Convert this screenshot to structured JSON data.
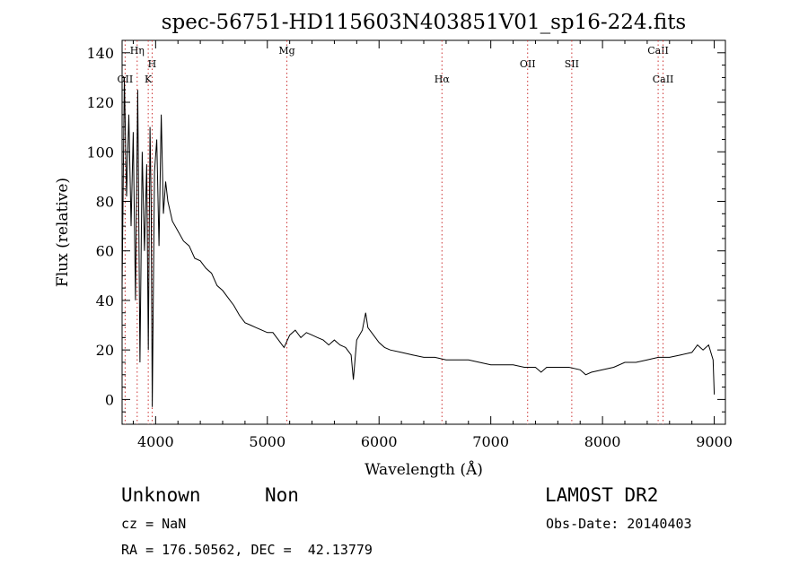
{
  "chart_data": {
    "type": "line",
    "title": "spec-56751-HD115603N403851V01_sp16-224.fits",
    "xlabel": "Wavelength (Å)",
    "ylabel": "Flux (relative)",
    "xlim": [
      3700,
      9100
    ],
    "ylim": [
      -10,
      145
    ],
    "x_ticks": [
      4000,
      5000,
      6000,
      7000,
      8000,
      9000
    ],
    "y_ticks": [
      0,
      20,
      40,
      60,
      80,
      100,
      120,
      140
    ],
    "grid": false,
    "line_color": "#000000",
    "marker_line_style": "dotted",
    "series": [
      {
        "x": [
          3700,
          3720,
          3740,
          3760,
          3780,
          3800,
          3820,
          3840,
          3860,
          3880,
          3900,
          3920,
          3935,
          3950,
          3960,
          3970,
          3990,
          4010,
          4030,
          4050,
          4070,
          4090,
          4110,
          4150,
          4200,
          4250,
          4300,
          4350,
          4400,
          4450,
          4500,
          4550,
          4600,
          4650,
          4700,
          4750,
          4800,
          4850,
          4900,
          4950,
          5000,
          5050,
          5100,
          5150,
          5200,
          5250,
          5300,
          5350,
          5400,
          5450,
          5500,
          5550,
          5600,
          5650,
          5700,
          5750,
          5770,
          5800,
          5850,
          5880,
          5900,
          5950,
          6000,
          6050,
          6100,
          6200,
          6300,
          6400,
          6500,
          6600,
          6700,
          6800,
          6900,
          7000,
          7100,
          7200,
          7300,
          7400,
          7450,
          7500,
          7600,
          7700,
          7800,
          7850,
          7900,
          8000,
          8100,
          8200,
          8300,
          8400,
          8500,
          8600,
          8700,
          8800,
          8850,
          8900,
          8950,
          8990,
          9000
        ],
        "y": [
          45,
          130,
          82,
          115,
          70,
          108,
          40,
          125,
          15,
          100,
          60,
          95,
          20,
          110,
          78,
          -3,
          92,
          105,
          62,
          115,
          75,
          88,
          80,
          72,
          68,
          64,
          62,
          57,
          56,
          53,
          51,
          46,
          44,
          41,
          38,
          34,
          31,
          30,
          29,
          28,
          27,
          27,
          24,
          21,
          26,
          28,
          25,
          27,
          26,
          25,
          24,
          22,
          24,
          22,
          21,
          18,
          8,
          24,
          28,
          35,
          29,
          26,
          23,
          21,
          20,
          19,
          18,
          17,
          17,
          16,
          16,
          16,
          15,
          14,
          14,
          14,
          13,
          13,
          11,
          13,
          13,
          13,
          12,
          10,
          11,
          12,
          13,
          15,
          15,
          16,
          17,
          17,
          18,
          19,
          22,
          20,
          22,
          16,
          2
        ]
      }
    ],
    "line_markers": [
      {
        "label": "OII",
        "x": 3727
      },
      {
        "label": "Hη",
        "x": 3835
      },
      {
        "label": "K",
        "x": 3934
      },
      {
        "label": "H",
        "x": 3969
      },
      {
        "label": "Mg",
        "x": 5175
      },
      {
        "label": "Hα",
        "x": 6563
      },
      {
        "label": "OII",
        "x": 7330
      },
      {
        "label": "SII",
        "x": 7725
      },
      {
        "label": "CaII",
        "x": 8498
      },
      {
        "label": "CaII",
        "x": 8542
      }
    ]
  },
  "info": {
    "class": "Unknown",
    "subclass": "Non",
    "survey": "LAMOST DR2",
    "cz": "cz = NaN",
    "obs_date": "Obs-Date: 20140403",
    "coords": "RA = 176.50562, DEC =  42.13779"
  }
}
